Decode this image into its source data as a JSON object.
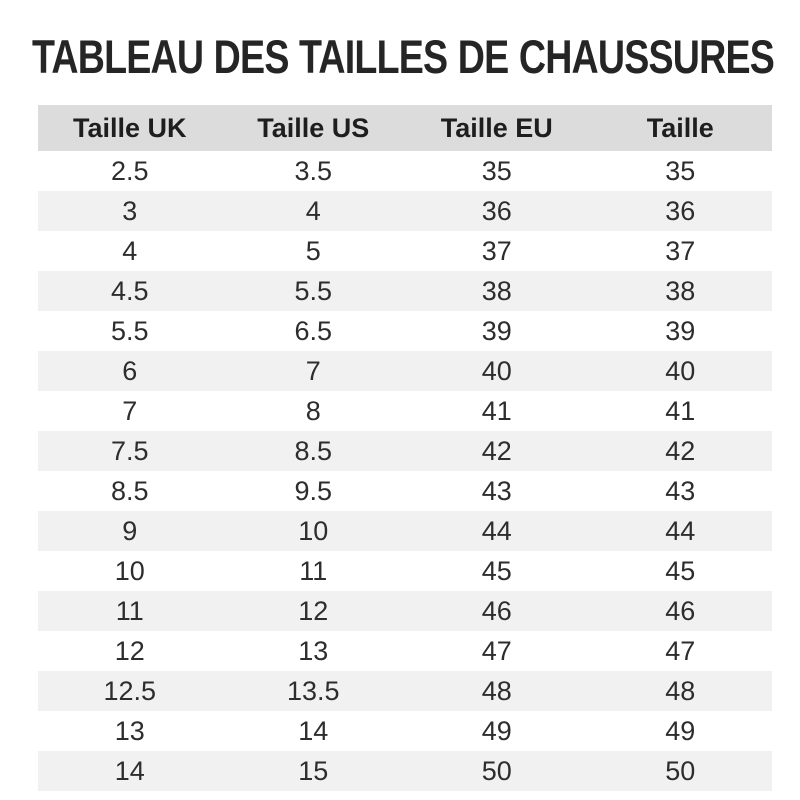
{
  "chart_data": {
    "type": "table",
    "title": "TABLEAU DES TAILLES DE CHAUSSURES",
    "columns": [
      "Taille UK",
      "Taille US",
      "Taille EU",
      "Taille"
    ],
    "rows": [
      [
        "2.5",
        "3.5",
        "35",
        "35"
      ],
      [
        "3",
        "4",
        "36",
        "36"
      ],
      [
        "4",
        "5",
        "37",
        "37"
      ],
      [
        "4.5",
        "5.5",
        "38",
        "38"
      ],
      [
        "5.5",
        "6.5",
        "39",
        "39"
      ],
      [
        "6",
        "7",
        "40",
        "40"
      ],
      [
        "7",
        "8",
        "41",
        "41"
      ],
      [
        "7.5",
        "8.5",
        "42",
        "42"
      ],
      [
        "8.5",
        "9.5",
        "43",
        "43"
      ],
      [
        "9",
        "10",
        "44",
        "44"
      ],
      [
        "10",
        "11",
        "45",
        "45"
      ],
      [
        "11",
        "12",
        "46",
        "46"
      ],
      [
        "12",
        "13",
        "47",
        "47"
      ],
      [
        "12.5",
        "13.5",
        "48",
        "48"
      ],
      [
        "13",
        "14",
        "49",
        "49"
      ],
      [
        "14",
        "15",
        "50",
        "50"
      ]
    ],
    "layout": {
      "zebra_striping": true,
      "stripe_pattern": "odd rows white, even rows light gray",
      "header_background": "gray band",
      "alignment": "center"
    }
  },
  "colors": {
    "header_bg": "#dcdcdc",
    "stripe_bg": "#f1f1f1",
    "text": "#2d2d2d",
    "title": "#252525",
    "background": "#ffffff"
  }
}
